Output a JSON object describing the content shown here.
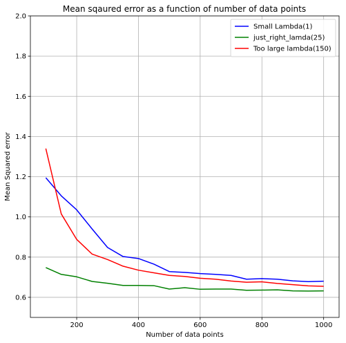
{
  "chart_data": {
    "type": "line",
    "title": "Mean sqaured error as a function of number of data points",
    "xlabel": "Number of data points",
    "ylabel": "Mean Squared error",
    "xlim": [
      50,
      1050
    ],
    "ylim": [
      0.5,
      2.0
    ],
    "xticks": [
      200,
      400,
      600,
      800,
      1000
    ],
    "yticks": [
      0.6,
      0.8,
      1.0,
      1.2,
      1.4,
      1.6,
      1.8,
      2.0
    ],
    "grid": true,
    "legend_position": "top-right",
    "x": [
      100,
      150,
      200,
      250,
      300,
      350,
      400,
      450,
      500,
      550,
      600,
      650,
      700,
      750,
      800,
      850,
      900,
      950,
      1000
    ],
    "series": [
      {
        "name": "Small Lambda(1)",
        "color": "#0000ff",
        "values": [
          1.195,
          1.105,
          1.035,
          0.94,
          0.848,
          0.803,
          0.793,
          0.765,
          0.728,
          0.724,
          0.718,
          0.714,
          0.709,
          0.69,
          0.693,
          0.69,
          0.682,
          0.678,
          0.68
        ]
      },
      {
        "name": "just_right_lamda(25)",
        "color": "#008000",
        "values": [
          0.748,
          0.714,
          0.702,
          0.679,
          0.67,
          0.659,
          0.659,
          0.658,
          0.641,
          0.648,
          0.64,
          0.641,
          0.641,
          0.635,
          0.636,
          0.637,
          0.632,
          0.631,
          0.632
        ]
      },
      {
        "name": "Too large lambda(150)",
        "color": "#ff0000",
        "values": [
          1.34,
          1.015,
          0.888,
          0.815,
          0.788,
          0.755,
          0.735,
          0.722,
          0.709,
          0.704,
          0.695,
          0.69,
          0.681,
          0.675,
          0.677,
          0.669,
          0.663,
          0.657,
          0.655
        ]
      }
    ]
  }
}
